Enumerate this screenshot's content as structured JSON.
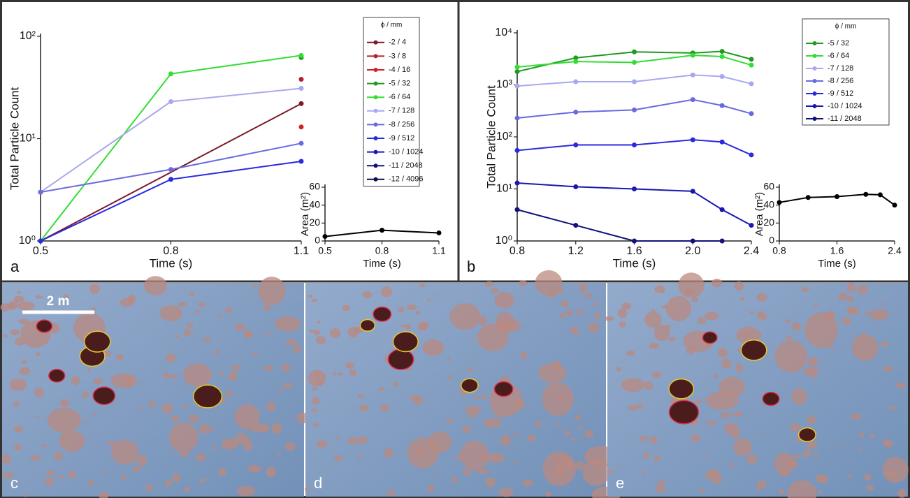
{
  "chart_data": [
    {
      "type": "line",
      "label": "a",
      "xlabel": "Time (s)",
      "ylabel": "Total Particle Count",
      "log_y": true,
      "xlim": [
        0.5,
        1.1
      ],
      "xticks": [
        0.5,
        0.8,
        1.1
      ],
      "ylim": [
        1,
        100
      ],
      "yticks": [
        {
          "value": 1,
          "label": "10⁰"
        },
        {
          "value": 10,
          "label": "10¹"
        },
        {
          "value": 100,
          "label": "10²"
        }
      ],
      "legend_title": "ϕ / mm",
      "series": [
        {
          "name": "-2 / 4",
          "color": "#7b1a2a",
          "x": [
            0.5,
            1.1
          ],
          "values": [
            1,
            22
          ]
        },
        {
          "name": "-3 / 8",
          "color": "#b3202e",
          "x": [
            1.1
          ],
          "values": [
            38
          ]
        },
        {
          "name": "-4 / 16",
          "color": "#d42020",
          "x": [
            1.1
          ],
          "values": [
            13
          ]
        },
        {
          "name": "-5 / 32",
          "color": "#1f9a1f",
          "x": [
            1.1
          ],
          "values": [
            62
          ]
        },
        {
          "name": "-6 / 64",
          "color": "#33dd33",
          "x": [
            0.5,
            0.8,
            1.1
          ],
          "values": [
            1,
            43,
            65
          ]
        },
        {
          "name": "-7 / 128",
          "color": "#a8a8ee",
          "x": [
            0.5,
            0.8,
            1.1
          ],
          "values": [
            3,
            23,
            31
          ]
        },
        {
          "name": "-8 / 256",
          "color": "#6a6ae0",
          "x": [
            0.5,
            0.8,
            1.1
          ],
          "values": [
            3,
            5,
            9
          ]
        },
        {
          "name": "-9 / 512",
          "color": "#2a2ae0",
          "x": [
            0.5,
            0.8,
            1.1
          ],
          "values": [
            1,
            4,
            6
          ]
        },
        {
          "name": "-10 / 1024",
          "color": "#1818b0",
          "x": [],
          "values": []
        },
        {
          "name": "-11 / 2048",
          "color": "#12127a",
          "x": [],
          "values": []
        },
        {
          "name": "-12 / 4096",
          "color": "#0c0c4a",
          "x": [],
          "values": []
        }
      ]
    },
    {
      "type": "line",
      "xlabel": "Time (s)",
      "ylabel": "Area (m²)",
      "xlim": [
        0.5,
        1.1
      ],
      "xticks": [
        0.5,
        0.8,
        1.1
      ],
      "ylim": [
        0,
        60
      ],
      "yticks": [
        0,
        20,
        40,
        60
      ],
      "series": [
        {
          "color": "#000000",
          "x": [
            0.5,
            0.8,
            1.1
          ],
          "values": [
            5,
            12,
            9
          ]
        }
      ]
    },
    {
      "type": "line",
      "label": "b",
      "xlabel": "Time (s)",
      "ylabel": "Total Particle Count",
      "log_y": true,
      "xlim": [
        0.8,
        2.4
      ],
      "xticks": [
        0.8,
        1.2,
        1.6,
        {
          "value": 2,
          "label": "2.0"
        },
        2.4
      ],
      "ylim": [
        1,
        10000
      ],
      "yticks": [
        {
          "value": 1,
          "label": "10⁰"
        },
        {
          "value": 10,
          "label": "10¹"
        },
        {
          "value": 100,
          "label": "10²"
        },
        {
          "value": 1000,
          "label": "10³"
        },
        {
          "value": 10000,
          "label": "10⁴"
        }
      ],
      "legend_title": "ϕ / mm",
      "series": [
        {
          "name": "-5 / 32",
          "color": "#1f9a1f",
          "x": [
            0.8,
            1.2,
            1.6,
            2.0,
            2.2,
            2.4
          ],
          "values": [
            1800,
            3300,
            4300,
            4100,
            4400,
            3100
          ]
        },
        {
          "name": "-6 / 64",
          "color": "#33dd33",
          "x": [
            0.8,
            1.2,
            1.6,
            2.0,
            2.2,
            2.4
          ],
          "values": [
            2200,
            2800,
            2700,
            3700,
            3500,
            2400
          ]
        },
        {
          "name": "-7 / 128",
          "color": "#a8a8ee",
          "x": [
            0.8,
            1.2,
            1.6,
            2.0,
            2.2,
            2.4
          ],
          "values": [
            950,
            1150,
            1150,
            1550,
            1450,
            1050
          ]
        },
        {
          "name": "-8 / 256",
          "color": "#6a6ae0",
          "x": [
            0.8,
            1.2,
            1.6,
            2.0,
            2.2,
            2.4
          ],
          "values": [
            230,
            300,
            330,
            520,
            400,
            280
          ]
        },
        {
          "name": "-9 / 512",
          "color": "#2a2ae0",
          "x": [
            0.8,
            1.2,
            1.6,
            2.0,
            2.2,
            2.4
          ],
          "values": [
            55,
            70,
            70,
            88,
            80,
            45
          ]
        },
        {
          "name": "-10 / 1024",
          "color": "#1818b0",
          "x": [
            0.8,
            1.2,
            1.6,
            2.0,
            2.2,
            2.4
          ],
          "values": [
            13,
            11,
            10,
            9,
            4,
            2
          ]
        },
        {
          "name": "-11 / 2048",
          "color": "#12127a",
          "x": [
            0.8,
            1.2,
            1.6,
            2.0,
            2.2
          ],
          "values": [
            4,
            2,
            1,
            1,
            1
          ]
        }
      ]
    },
    {
      "type": "line",
      "xlabel": "Time (s)",
      "ylabel": "Area (m²)",
      "xlim": [
        0.8,
        2.4
      ],
      "xticks": [
        0.8,
        1.6,
        2.4
      ],
      "ylim": [
        0,
        60
      ],
      "yticks": [
        0,
        20,
        40,
        60
      ],
      "series": [
        {
          "color": "#000000",
          "x": [
            0.8,
            1.2,
            1.6,
            2.0,
            2.2,
            2.4
          ],
          "values": [
            43,
            48.5,
            49.5,
            52,
            51.5,
            40
          ]
        }
      ]
    }
  ],
  "photos": [
    {
      "label": "c",
      "scale_bar": "2 m"
    },
    {
      "label": "d"
    },
    {
      "label": "e"
    }
  ]
}
